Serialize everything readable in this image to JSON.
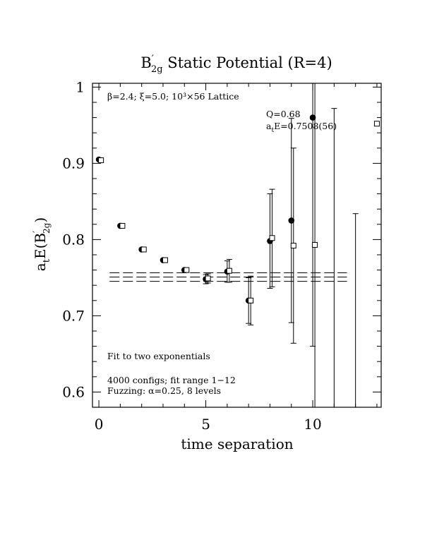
{
  "chart_data": {
    "type": "scatter",
    "title": "B′₂g Static Potential (R=4)",
    "title_parts": {
      "base": "B",
      "prime": "′",
      "sub": "2g",
      "rest": " Static Potential (R=4)"
    },
    "xlabel": "time separation",
    "ylabel": "aₜE(B′₂g)",
    "ylabel_parts": {
      "pre": "a",
      "pre_sub": "t",
      "mid": "E(B",
      "prime": "′",
      "sub": "2g",
      "post": ")"
    },
    "xlim": [
      -0.3,
      13.2
    ],
    "ylim": [
      0.58,
      1.005
    ],
    "xticks": [
      0,
      5,
      10
    ],
    "xtick_labels": [
      "0",
      "5",
      "10"
    ],
    "yticks": [
      0.6,
      0.7,
      0.8,
      0.9,
      1.0
    ],
    "ytick_labels": [
      "0.6",
      "0.7",
      "0.8",
      "0.9",
      "1"
    ],
    "grid": false,
    "series": [
      {
        "marker": "filled-circle",
        "points": [
          {
            "x": 0,
            "y": 0.905
          },
          {
            "x": 1,
            "y": 0.818
          },
          {
            "x": 2,
            "y": 0.787
          },
          {
            "x": 3,
            "y": 0.773
          },
          {
            "x": 4,
            "y": 0.76
          },
          {
            "x": 5,
            "y": 0.748,
            "err": 0.006
          },
          {
            "x": 6,
            "y": 0.758,
            "err": 0.014
          },
          {
            "x": 7,
            "y": 0.72,
            "err": 0.03
          },
          {
            "x": 8,
            "y": 0.798,
            "err": 0.062
          },
          {
            "x": 9,
            "y": 0.825,
            "err": 0.134
          },
          {
            "x": 10,
            "y": 0.96,
            "err": 0.3
          }
        ]
      },
      {
        "marker": "open-square",
        "points": [
          {
            "x": 0.1,
            "y": 0.904
          },
          {
            "x": 1.1,
            "y": 0.818
          },
          {
            "x": 2.1,
            "y": 0.787
          },
          {
            "x": 3.1,
            "y": 0.773
          },
          {
            "x": 4.1,
            "y": 0.76
          },
          {
            "x": 5.1,
            "y": 0.749,
            "err": 0.006
          },
          {
            "x": 6.1,
            "y": 0.759,
            "err": 0.015
          },
          {
            "x": 7.1,
            "y": 0.72,
            "err": 0.032
          },
          {
            "x": 8.1,
            "y": 0.802,
            "err": 0.064
          },
          {
            "x": 9.1,
            "y": 0.792,
            "err": 0.128
          },
          {
            "x": 10.1,
            "y": 0.793,
            "err": 0.3
          },
          {
            "x": 11.0,
            "y": null,
            "err_low": 0.575,
            "err_high": 0.972
          },
          {
            "x": 12.0,
            "y": null,
            "err_low": 0.575,
            "err_high": 0.834
          },
          {
            "x": 13.0,
            "y": 0.952
          }
        ]
      }
    ],
    "fit": {
      "value": 0.7508,
      "err": 0.0056,
      "x_range": [
        0.5,
        11.6
      ]
    },
    "annotations": {
      "lattice": "β=2.4; ξ=5.0; 10³×56 Lattice",
      "q": "Q=0.68",
      "energy": "aₜE=0.7508(56)",
      "energy_parts": {
        "pre": "a",
        "sub": "t",
        "post": "E=0.7508(56)"
      },
      "fit_type": "Fit to two exponentials",
      "configs": "4000 configs; fit range 1−12",
      "fuzzing": "Fuzzing: α=0.25, 8 levels"
    }
  }
}
